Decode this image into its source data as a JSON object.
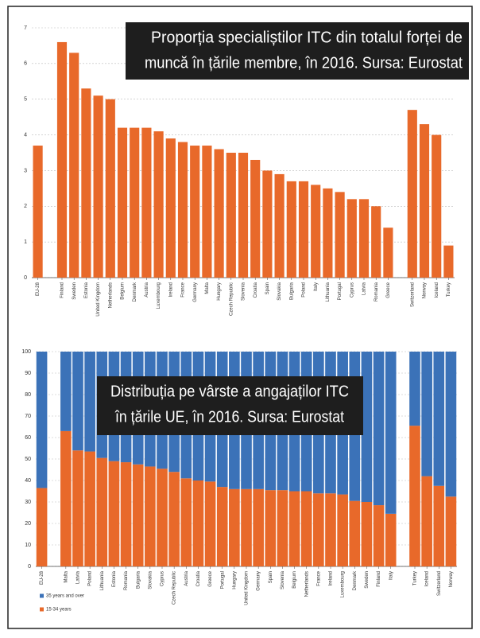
{
  "chart_data": [
    {
      "type": "bar",
      "title": [
        "Proporția specialiștilor ITC din totalul forței de",
        "muncă în țările membre, în 2016. Sursa: Eurostat"
      ],
      "categories": [
        "EU-28",
        null,
        "Finland",
        "Sweden",
        "Estonia",
        "United Kingdom",
        "Netherlands",
        "Belgium",
        "Denmark",
        "Austria",
        "Luxembourg",
        "Ireland",
        "France",
        "Germany",
        "Malta",
        "Hungary",
        "Czech Republic",
        "Slovenia",
        "Croatia",
        "Spain",
        "Slovakia",
        "Bulgaria",
        "Poland",
        "Italy",
        "Lithuania",
        "Portugal",
        "Cyprus",
        "Latvia",
        "Romania",
        "Greece",
        null,
        "Switzerland",
        "Norway",
        "Iceland",
        "Turkey"
      ],
      "values": [
        3.7,
        null,
        6.6,
        6.3,
        5.3,
        5.1,
        5.0,
        4.2,
        4.2,
        4.2,
        4.1,
        3.9,
        3.8,
        3.7,
        3.7,
        3.6,
        3.5,
        3.5,
        3.3,
        3.0,
        2.9,
        2.7,
        2.7,
        2.6,
        2.5,
        2.4,
        2.2,
        2.2,
        2.0,
        1.4,
        null,
        4.7,
        4.3,
        4.0,
        0.9
      ],
      "color": "#e8692a",
      "ylim": [
        0,
        7
      ],
      "yticks": [
        0,
        1,
        2,
        3,
        4,
        5,
        6,
        7
      ],
      "grid": true
    },
    {
      "type": "stacked-bar",
      "title": [
        "Distribuția pe vârste a angajaților ITC",
        "în țările UE, în 2016. Sursa: Eurostat"
      ],
      "categories": [
        "EU-28",
        null,
        "Malta",
        "Latvia",
        "Poland",
        "Lithuania",
        "Estonia",
        "Romania",
        "Bulgaria",
        "Slovakia",
        "Cyprus",
        "Czech Republic",
        "Austria",
        "Croatia",
        "Greece",
        "Portugal",
        "Hungary",
        "United Kingdom",
        "Germany",
        "Spain",
        "Slovenia",
        "Belgium",
        "Netherlands",
        "France",
        "Ireland",
        "Luxembourg",
        "Denmark",
        "Sweden",
        "Finland",
        "Italy",
        null,
        "Turkey",
        "Iceland",
        "Switzerland",
        "Norway"
      ],
      "series": [
        {
          "name": "15-34 years",
          "color": "#e8692a",
          "values": [
            36.5,
            null,
            63,
            54,
            53.5,
            50.5,
            49,
            48.5,
            47.5,
            46.5,
            45.5,
            44,
            41,
            40,
            39.5,
            37,
            36,
            36,
            36,
            35.5,
            35.5,
            35,
            35,
            34,
            34,
            33.5,
            30.5,
            30,
            28.5,
            24.5,
            null,
            65.5,
            42,
            37.5,
            32.5
          ]
        },
        {
          "name": "35 years and over",
          "color": "#3b72b8",
          "values": [
            63.5,
            null,
            37,
            46,
            46.5,
            49.5,
            51,
            51.5,
            52.5,
            53.5,
            54.5,
            56,
            59,
            60,
            60.5,
            63,
            64,
            64,
            64,
            64.5,
            64.5,
            65,
            65,
            66,
            66,
            66.5,
            69.5,
            70,
            71.5,
            75.5,
            null,
            34.5,
            58,
            62.5,
            67.5
          ]
        }
      ],
      "ylim": [
        0,
        100
      ],
      "yticks": [
        0,
        10,
        20,
        30,
        40,
        50,
        60,
        70,
        80,
        90,
        100
      ],
      "grid": true
    }
  ]
}
